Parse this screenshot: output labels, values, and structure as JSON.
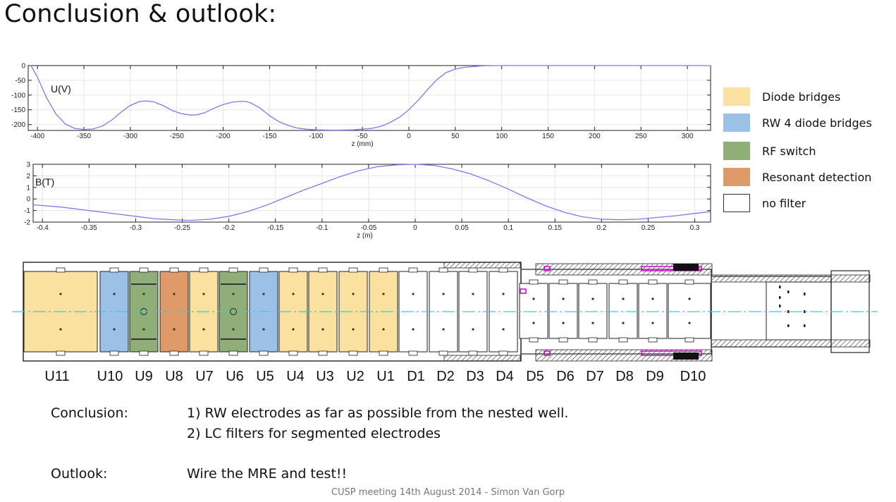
{
  "slide": {
    "title": "Conclusion & outlook:",
    "footer": "CUSP meeting 14th August 2014 - Simon Van Gorp"
  },
  "chart_data": [
    {
      "type": "line",
      "title": "",
      "ylabel": "U(V)",
      "xlabel": "z (mm)",
      "xlim": [
        -410,
        325
      ],
      "ylim": [
        -220,
        0
      ],
      "grid": true,
      "xticks": [
        -400,
        -350,
        -300,
        -250,
        -200,
        -150,
        -100,
        -50,
        0,
        50,
        100,
        150,
        200,
        250,
        300
      ],
      "yticks": [
        0,
        -50,
        -100,
        -150,
        -200
      ],
      "color": "#7b7bea",
      "series": [
        {
          "x": [
            -407,
            -400,
            -390,
            -380,
            -370,
            -360,
            -350,
            -340,
            -330,
            -320,
            -310,
            -300,
            -290,
            -283,
            -275,
            -265,
            -255,
            -245,
            -235,
            -228,
            -220,
            -210,
            -200,
            -190,
            -180,
            -175,
            -170,
            -160,
            -150,
            -140,
            -130,
            -120,
            -110,
            -100,
            -80,
            -60,
            -40,
            -30,
            -20,
            -10,
            0,
            10,
            20,
            30,
            40,
            50,
            60,
            70,
            80,
            100,
            150,
            200,
            250,
            300,
            325
          ],
          "y": [
            0,
            -40,
            -110,
            -165,
            -198,
            -213,
            -217,
            -215,
            -205,
            -185,
            -158,
            -135,
            -122,
            -120,
            -123,
            -135,
            -152,
            -163,
            -168,
            -167,
            -160,
            -145,
            -132,
            -124,
            -121,
            -122,
            -127,
            -145,
            -170,
            -190,
            -203,
            -212,
            -216,
            -218,
            -219,
            -218,
            -213,
            -206,
            -193,
            -175,
            -150,
            -118,
            -82,
            -48,
            -24,
            -12,
            -6,
            -3,
            -1,
            0,
            0,
            0,
            0,
            0,
            0
          ]
        }
      ]
    },
    {
      "type": "line",
      "title": "",
      "ylabel": "B(T)",
      "xlabel": "z (m)",
      "xlim": [
        -0.41,
        0.317
      ],
      "ylim": [
        -2,
        3
      ],
      "grid": true,
      "xticks": [
        "-0.4",
        "-0.35",
        "-0.3",
        "-0.25",
        "-0.2",
        "-0.15",
        "-0.1",
        "-0.05",
        "0",
        "0.05",
        "0.1",
        "0.15",
        "0.2",
        "0.25",
        "0.3"
      ],
      "yticks": [
        "3",
        "2",
        "1",
        "0",
        "-1",
        "-2"
      ],
      "color": "#7b7bea",
      "series": [
        {
          "x": [
            -0.41,
            -0.38,
            -0.35,
            -0.32,
            -0.3,
            -0.28,
            -0.26,
            -0.24,
            -0.22,
            -0.2,
            -0.18,
            -0.16,
            -0.14,
            -0.12,
            -0.1,
            -0.08,
            -0.06,
            -0.04,
            -0.02,
            0,
            0.02,
            0.04,
            0.06,
            0.08,
            0.1,
            0.12,
            0.14,
            0.16,
            0.18,
            0.2,
            0.22,
            0.24,
            0.26,
            0.28,
            0.3,
            0.317
          ],
          "y": [
            -0.5,
            -0.7,
            -1.0,
            -1.3,
            -1.5,
            -1.7,
            -1.8,
            -1.85,
            -1.75,
            -1.5,
            -1.1,
            -0.55,
            0.1,
            0.75,
            1.35,
            1.95,
            2.45,
            2.8,
            2.95,
            3.0,
            2.9,
            2.6,
            2.15,
            1.55,
            0.85,
            0.1,
            -0.6,
            -1.15,
            -1.55,
            -1.75,
            -1.8,
            -1.75,
            -1.6,
            -1.45,
            -1.25,
            -1.1
          ]
        }
      ]
    }
  ],
  "legend": [
    {
      "label": "Diode bridges",
      "color": "#fbe1a0"
    },
    {
      "label": "RW 4 diode bridges",
      "color": "#9bc1e6"
    },
    {
      "label": "RF switch",
      "color": "#8fae78"
    },
    {
      "label": "Resonant detection",
      "color": "#df9a69"
    },
    {
      "label": "no filter",
      "color": "#ffffff"
    }
  ],
  "electrodes": [
    {
      "label": "U11",
      "color": "#fbe1a0"
    },
    {
      "label": "U10",
      "color": "#9bc1e6"
    },
    {
      "label": "U9",
      "color": "#8fae78"
    },
    {
      "label": "U8",
      "color": "#df9a69"
    },
    {
      "label": "U7",
      "color": "#fbe1a0"
    },
    {
      "label": "U6",
      "color": "#8fae78"
    },
    {
      "label": "U5",
      "color": "#9bc1e6"
    },
    {
      "label": "U4",
      "color": "#fbe1a0"
    },
    {
      "label": "U3",
      "color": "#fbe1a0"
    },
    {
      "label": "U2",
      "color": "#fbe1a0"
    },
    {
      "label": "U1",
      "color": "#fbe1a0"
    },
    {
      "label": "D1",
      "color": "#ffffff"
    },
    {
      "label": "D2",
      "color": "#ffffff"
    },
    {
      "label": "D3",
      "color": "#ffffff"
    },
    {
      "label": "D4",
      "color": "#ffffff"
    },
    {
      "label": "D5",
      "color": "#ffffff"
    },
    {
      "label": "D6",
      "color": "#ffffff"
    },
    {
      "label": "D7",
      "color": "#ffffff"
    },
    {
      "label": "D8",
      "color": "#ffffff"
    },
    {
      "label": "D9",
      "color": "#ffffff"
    },
    {
      "label": "D10",
      "color": "#ffffff"
    }
  ],
  "text": {
    "conclusion_label": "Conclusion:",
    "conclusion_1": "1) RW electrodes as far as possible from the nested well.",
    "conclusion_2": "2) LC filters for segmented electrodes",
    "outlook_label": "Outlook:",
    "outlook_text": "Wire the MRE and test!!"
  }
}
